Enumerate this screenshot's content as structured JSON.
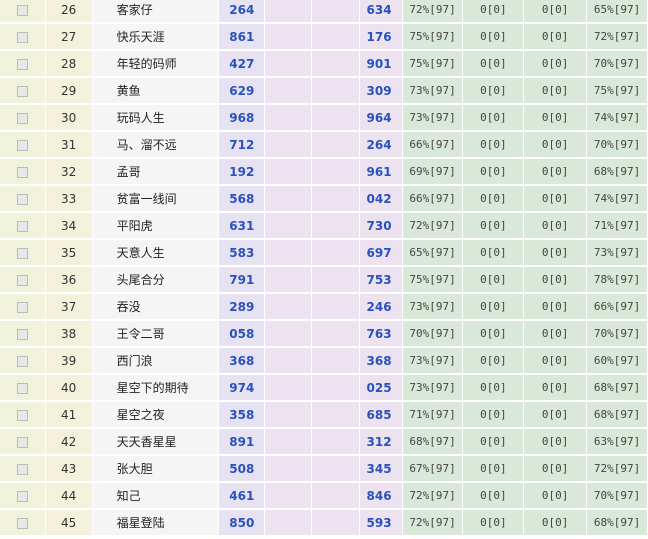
{
  "rows": [
    {
      "no": "26",
      "name": "客家仔",
      "a": "264",
      "b": "634",
      "c1": "72%[97]",
      "c2": "0[0]",
      "c3": "0[0]",
      "c4": "65%[97]"
    },
    {
      "no": "27",
      "name": "快乐天涯",
      "a": "861",
      "b": "176",
      "c1": "75%[97]",
      "c2": "0[0]",
      "c3": "0[0]",
      "c4": "72%[97]"
    },
    {
      "no": "28",
      "name": "年轻的码师",
      "a": "427",
      "b": "901",
      "c1": "75%[97]",
      "c2": "0[0]",
      "c3": "0[0]",
      "c4": "70%[97]"
    },
    {
      "no": "29",
      "name": "黄鱼",
      "a": "629",
      "b": "309",
      "c1": "73%[97]",
      "c2": "0[0]",
      "c3": "0[0]",
      "c4": "75%[97]"
    },
    {
      "no": "30",
      "name": "玩码人生",
      "a": "968",
      "b": "964",
      "c1": "73%[97]",
      "c2": "0[0]",
      "c3": "0[0]",
      "c4": "74%[97]"
    },
    {
      "no": "31",
      "name": "马、溜不远",
      "a": "712",
      "b": "264",
      "c1": "66%[97]",
      "c2": "0[0]",
      "c3": "0[0]",
      "c4": "70%[97]"
    },
    {
      "no": "32",
      "name": "孟哥",
      "a": "192",
      "b": "961",
      "c1": "69%[97]",
      "c2": "0[0]",
      "c3": "0[0]",
      "c4": "68%[97]"
    },
    {
      "no": "33",
      "name": "贫富一线间",
      "a": "568",
      "b": "042",
      "c1": "66%[97]",
      "c2": "0[0]",
      "c3": "0[0]",
      "c4": "74%[97]"
    },
    {
      "no": "34",
      "name": "平阳虎",
      "a": "631",
      "b": "730",
      "c1": "72%[97]",
      "c2": "0[0]",
      "c3": "0[0]",
      "c4": "71%[97]"
    },
    {
      "no": "35",
      "name": "天意人生",
      "a": "583",
      "b": "697",
      "c1": "65%[97]",
      "c2": "0[0]",
      "c3": "0[0]",
      "c4": "73%[97]"
    },
    {
      "no": "36",
      "name": "头尾合分",
      "a": "791",
      "b": "753",
      "c1": "75%[97]",
      "c2": "0[0]",
      "c3": "0[0]",
      "c4": "78%[97]"
    },
    {
      "no": "37",
      "name": "吞没",
      "a": "289",
      "b": "246",
      "c1": "73%[97]",
      "c2": "0[0]",
      "c3": "0[0]",
      "c4": "66%[97]"
    },
    {
      "no": "38",
      "name": "王令二哥",
      "a": "058",
      "b": "763",
      "c1": "70%[97]",
      "c2": "0[0]",
      "c3": "0[0]",
      "c4": "70%[97]"
    },
    {
      "no": "39",
      "name": "西门浪",
      "a": "368",
      "b": "368",
      "c1": "73%[97]",
      "c2": "0[0]",
      "c3": "0[0]",
      "c4": "60%[97]"
    },
    {
      "no": "40",
      "name": "星空下的期待",
      "a": "974",
      "b": "025",
      "c1": "73%[97]",
      "c2": "0[0]",
      "c3": "0[0]",
      "c4": "68%[97]"
    },
    {
      "no": "41",
      "name": "星空之夜",
      "a": "358",
      "b": "685",
      "c1": "71%[97]",
      "c2": "0[0]",
      "c3": "0[0]",
      "c4": "68%[97]"
    },
    {
      "no": "42",
      "name": "天天香星星",
      "a": "891",
      "b": "312",
      "c1": "68%[97]",
      "c2": "0[0]",
      "c3": "0[0]",
      "c4": "63%[97]"
    },
    {
      "no": "43",
      "name": "张大胆",
      "a": "508",
      "b": "345",
      "c1": "67%[97]",
      "c2": "0[0]",
      "c3": "0[0]",
      "c4": "72%[97]"
    },
    {
      "no": "44",
      "name": "知己",
      "a": "461",
      "b": "846",
      "c1": "72%[97]",
      "c2": "0[0]",
      "c3": "0[0]",
      "c4": "70%[97]"
    },
    {
      "no": "45",
      "name": "福星登陆",
      "a": "850",
      "b": "593",
      "c1": "72%[97]",
      "c2": "0[0]",
      "c3": "0[0]",
      "c4": "68%[97]"
    }
  ]
}
